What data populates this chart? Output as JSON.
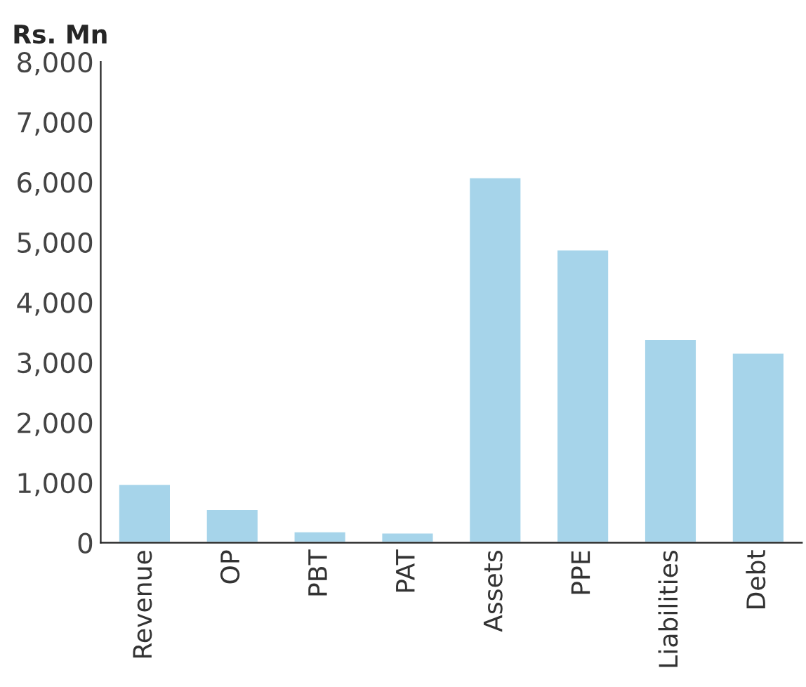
{
  "chart_data": {
    "type": "bar",
    "ylabel": "Rs. Mn",
    "categories": [
      "Revenue",
      "OP",
      "PBT",
      "PAT",
      "Assets",
      "PPE",
      "Liabilities",
      "Debt"
    ],
    "values": [
      980,
      560,
      190,
      170,
      6080,
      4880,
      3390,
      3160
    ],
    "color": "#a6d4ea",
    "ylim": [
      0,
      8000
    ],
    "yticks": [
      {
        "value": 0,
        "label": "0"
      },
      {
        "value": 1000,
        "label": "1,000"
      },
      {
        "value": 2000,
        "label": "2,000"
      },
      {
        "value": 3000,
        "label": "3,000"
      },
      {
        "value": 4000,
        "label": "4,000"
      },
      {
        "value": 5000,
        "label": "5,000"
      },
      {
        "value": 6000,
        "label": "6,000"
      },
      {
        "value": 7000,
        "label": "7,000"
      },
      {
        "value": 8000,
        "label": "8,000"
      }
    ],
    "grid": false
  }
}
